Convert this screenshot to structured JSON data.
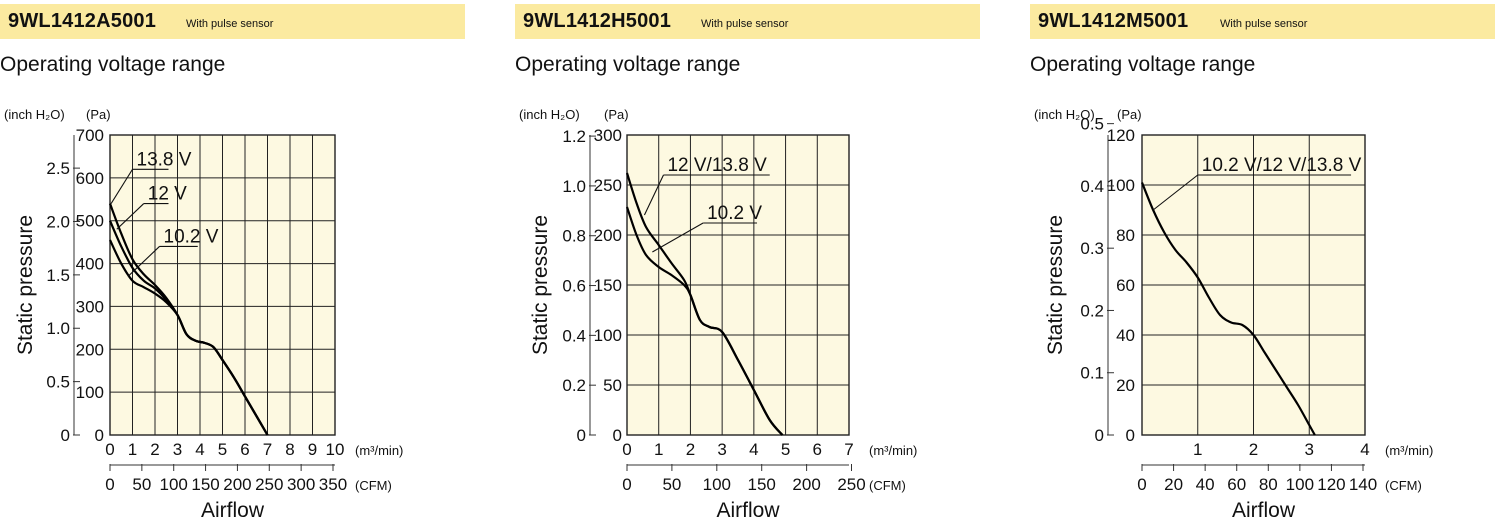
{
  "panels": [
    {
      "model": "9WL1412A5001",
      "model_note": "With pulse sensor",
      "subtitle": "Operating voltage range"
    },
    {
      "model": "9WL1412H5001",
      "model_note": "With pulse sensor",
      "subtitle": "Operating voltage range"
    },
    {
      "model": "9WL1412M5001",
      "model_note": "With pulse sensor",
      "subtitle": "Operating voltage range"
    }
  ],
  "colors": {
    "header_bg": "#fbeaa0",
    "plot_bg": "#fdf9e1",
    "grid": "#222222",
    "curve": "#000000"
  },
  "chart_data": [
    {
      "type": "line",
      "ylabel": "Static pressure",
      "xlabel": "Airflow",
      "y_unit_left": "(inch H₂O)",
      "y_unit_right": "(Pa)",
      "x_unit_top": "(m³/min)",
      "x_unit_bottom": "(CFM)",
      "xlim": [
        0,
        10
      ],
      "ylim": [
        0,
        700
      ],
      "x_ticks": [
        "0",
        "1",
        "2",
        "3",
        "4",
        "5",
        "6",
        "7",
        "8",
        "9",
        "10"
      ],
      "y_ticks_pa": [
        "0",
        "100",
        "200",
        "300",
        "400",
        "500",
        "600",
        "700"
      ],
      "y_ticks_inh2o": [
        "0",
        "0.5",
        "1.0",
        "1.5",
        "2.0",
        "2.5"
      ],
      "cfm_ticks": [
        "0",
        "50",
        "100",
        "150",
        "200",
        "250",
        "300",
        "350"
      ],
      "grid": true,
      "series": [
        {
          "name": "13.8 V",
          "x": [
            0,
            0.5,
            1,
            1.5,
            2,
            2.5,
            3,
            3.4,
            3.8,
            4.2,
            4.6,
            5,
            5.5,
            6,
            6.5,
            7
          ],
          "y": [
            540,
            470,
            410,
            375,
            350,
            320,
            280,
            235,
            220,
            215,
            205,
            175,
            135,
            90,
            45,
            0
          ]
        },
        {
          "name": "12 V",
          "x": [
            0,
            0.5,
            1,
            1.5,
            2,
            2.5,
            3,
            3.4,
            3.8,
            4.2,
            4.6,
            5,
            5.5,
            6,
            6.5,
            7
          ],
          "y": [
            500,
            440,
            390,
            360,
            342,
            315,
            280,
            235,
            220,
            215,
            205,
            175,
            135,
            90,
            45,
            0
          ]
        },
        {
          "name": "10.2 V",
          "x": [
            0,
            0.5,
            1,
            1.5,
            2,
            2.5,
            3,
            3.4,
            3.8,
            4.2,
            4.6,
            5,
            5.5,
            6,
            6.5,
            7
          ],
          "y": [
            455,
            400,
            360,
            345,
            330,
            310,
            280,
            235,
            220,
            215,
            205,
            175,
            135,
            90,
            45,
            0
          ]
        }
      ],
      "annotations": [
        {
          "text": "13.8 V",
          "x": 1.0,
          "y": 620,
          "line_end": [
            2.6,
            620
          ],
          "points_to": [
            0.05,
            540
          ]
        },
        {
          "text": "12 V",
          "x": 1.5,
          "y": 540,
          "line_end": [
            2.6,
            540
          ],
          "points_to": [
            0.3,
            480
          ]
        },
        {
          "text": "10.2 V",
          "x": 2.2,
          "y": 440,
          "line_end": [
            3.9,
            440
          ],
          "points_to": [
            0.8,
            370
          ]
        }
      ]
    },
    {
      "type": "line",
      "ylabel": "Static pressure",
      "xlabel": "Airflow",
      "y_unit_left": "(inch H₂O)",
      "y_unit_right": "(Pa)",
      "x_unit_top": "(m³/min)",
      "x_unit_bottom": "(CFM)",
      "xlim": [
        0,
        7
      ],
      "ylim": [
        0,
        300
      ],
      "x_ticks": [
        "0",
        "1",
        "2",
        "3",
        "4",
        "5",
        "6",
        "7"
      ],
      "y_ticks_pa": [
        "0",
        "50",
        "100",
        "150",
        "200",
        "250",
        "300"
      ],
      "y_ticks_inh2o": [
        "0",
        "0.2",
        "0.4",
        "0.6",
        "0.8",
        "1.0",
        "1.2"
      ],
      "cfm_ticks": [
        "0",
        "50",
        "100",
        "150",
        "200",
        "250"
      ],
      "grid": true,
      "series": [
        {
          "name": "12 V/13.8 V",
          "x": [
            0,
            0.3,
            0.6,
            1,
            1.4,
            1.8,
            2,
            2.3,
            2.6,
            3,
            3.5,
            4,
            4.5,
            4.9
          ],
          "y": [
            262,
            232,
            208,
            190,
            172,
            155,
            140,
            115,
            108,
            103,
            75,
            45,
            15,
            0
          ]
        },
        {
          "name": "10.2 V",
          "x": [
            0,
            0.3,
            0.6,
            1,
            1.4,
            1.8,
            2,
            2.3,
            2.6,
            3,
            3.5,
            4,
            4.5,
            4.9
          ],
          "y": [
            228,
            200,
            180,
            168,
            160,
            150,
            140,
            115,
            108,
            103,
            75,
            45,
            15,
            0
          ]
        }
      ],
      "annotations": [
        {
          "text": "12 V/13.8 V",
          "x": 1.15,
          "y": 260,
          "line_end": [
            4.5,
            260
          ],
          "points_to": [
            0.55,
            220
          ]
        },
        {
          "text": "10.2 V",
          "x": 2.4,
          "y": 212,
          "line_end": [
            4.1,
            212
          ],
          "points_to": [
            0.8,
            183
          ]
        }
      ]
    },
    {
      "type": "line",
      "ylabel": "Static pressure",
      "xlabel": "Airflow",
      "y_unit_left": "(inch H₂O)",
      "y_unit_right": "(Pa)",
      "x_unit_top": "(m³/min)",
      "x_unit_bottom": "(CFM)",
      "xlim": [
        0,
        4
      ],
      "ylim": [
        0,
        120
      ],
      "x_ticks": [
        "",
        "1",
        "",
        "2",
        "",
        "3",
        "",
        "4"
      ],
      "x_ticks_pos": [
        0,
        1,
        1.5,
        2,
        2.5,
        3,
        3.5,
        4
      ],
      "y_ticks_pa": [
        "0",
        "20",
        "40",
        "60",
        "80",
        "100",
        "120"
      ],
      "y_ticks_inh2o": [
        "0",
        "0.1",
        "0.2",
        "0.3",
        "0.4",
        "0.5"
      ],
      "cfm_ticks": [
        "0",
        "20",
        "40",
        "60",
        "80",
        "100",
        "120",
        "140"
      ],
      "grid": true,
      "series": [
        {
          "name": "10.2 V/12 V/13.8 V",
          "x": [
            0,
            0.2,
            0.4,
            0.6,
            0.8,
            1.0,
            1.2,
            1.4,
            1.6,
            1.8,
            2.0,
            2.2,
            2.4,
            2.6,
            2.8,
            3.0,
            3.1
          ],
          "y": [
            101,
            90,
            81,
            74,
            69,
            63,
            55,
            48,
            45,
            44,
            40,
            33,
            26,
            19,
            12,
            4,
            0
          ]
        }
      ],
      "annotations": [
        {
          "text": "10.2 V/12 V/13.8 V",
          "x": 1.0,
          "y": 104,
          "line_end": [
            3.75,
            104
          ],
          "points_to": [
            0.2,
            90
          ]
        }
      ]
    }
  ]
}
